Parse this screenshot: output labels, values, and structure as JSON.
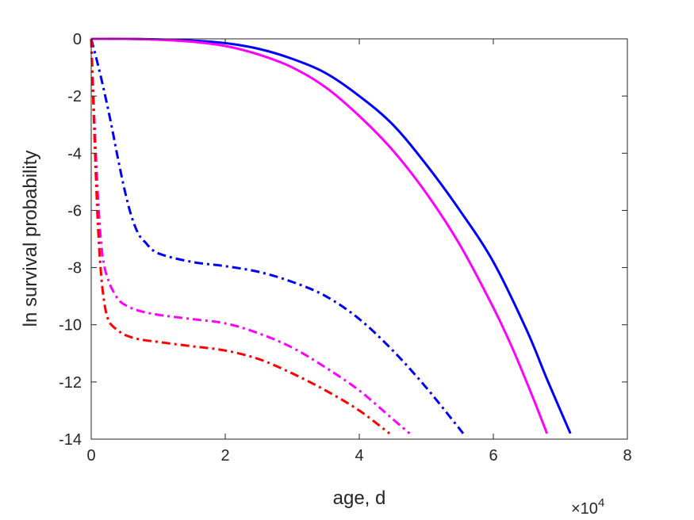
{
  "chart_data": {
    "type": "line",
    "title": "",
    "xlabel": "age, d",
    "ylabel": "ln survival probability",
    "xlim": [
      0,
      80000
    ],
    "ylim": [
      -14,
      0
    ],
    "x_ticks": [
      0,
      20000,
      40000,
      60000,
      80000
    ],
    "x_tick_labels": [
      "0",
      "2",
      "4",
      "6",
      "8"
    ],
    "x_multiplier": {
      "base": "×10",
      "exponent": "4"
    },
    "y_ticks": [
      0,
      -2,
      -4,
      -6,
      -8,
      -10,
      -12,
      -14
    ],
    "y_tick_labels": [
      "0",
      "-2",
      "-4",
      "-6",
      "-8",
      "-10",
      "-12",
      "-14"
    ],
    "grid": false,
    "legend": "none",
    "series": [
      {
        "color": "#0000ff",
        "style": "solid",
        "x": [
          0,
          5000,
          10000,
          15000,
          20000,
          25000,
          30000,
          35000,
          40000,
          45000,
          50000,
          55000,
          60000,
          65000,
          68000,
          71500
        ],
        "y": [
          0,
          0,
          -0.02,
          -0.06,
          -0.15,
          -0.35,
          -0.7,
          -1.2,
          -2.0,
          -3.0,
          -4.4,
          -6.0,
          -7.8,
          -10.2,
          -11.9,
          -13.8
        ]
      },
      {
        "color": "#ff00ff",
        "style": "solid",
        "x": [
          0,
          5000,
          10000,
          15000,
          20000,
          25000,
          30000,
          35000,
          40000,
          45000,
          50000,
          55000,
          60000,
          63000,
          66000,
          68000
        ],
        "y": [
          0,
          0,
          -0.03,
          -0.1,
          -0.25,
          -0.55,
          -1.0,
          -1.7,
          -2.7,
          -3.9,
          -5.4,
          -7.2,
          -9.4,
          -10.9,
          -12.6,
          -13.8
        ]
      },
      {
        "color": "#0000ff",
        "style": "dashdot",
        "x": [
          0,
          1000,
          2000,
          3000,
          4000,
          5000,
          6000,
          7000,
          8000,
          10000,
          15000,
          20000,
          25000,
          30000,
          35000,
          40000,
          45000,
          50000,
          55500
        ],
        "y": [
          0,
          -0.9,
          -1.9,
          -3.0,
          -4.2,
          -5.3,
          -6.2,
          -6.8,
          -7.1,
          -7.5,
          -7.8,
          -7.95,
          -8.15,
          -8.5,
          -9.0,
          -9.8,
          -10.9,
          -12.2,
          -13.8
        ]
      },
      {
        "color": "#ff00ff",
        "style": "dashdot",
        "x": [
          0,
          500,
          1000,
          1500,
          2000,
          2500,
          3000,
          4000,
          5000,
          7000,
          10000,
          15000,
          20000,
          25000,
          30000,
          35000,
          40000,
          45000,
          47500
        ],
        "y": [
          0,
          -3.0,
          -5.5,
          -7.2,
          -8.0,
          -8.4,
          -8.7,
          -9.1,
          -9.3,
          -9.5,
          -9.65,
          -9.8,
          -9.95,
          -10.3,
          -10.8,
          -11.5,
          -12.3,
          -13.3,
          -13.8
        ]
      },
      {
        "color": "#ff0000",
        "style": "dashdot",
        "x": [
          0,
          500,
          1000,
          1500,
          2000,
          2500,
          3000,
          4000,
          5000,
          7000,
          10000,
          15000,
          20000,
          25000,
          30000,
          35000,
          40000,
          44500
        ],
        "y": [
          0,
          -3.5,
          -6.5,
          -8.3,
          -9.3,
          -9.8,
          -10.0,
          -10.2,
          -10.35,
          -10.5,
          -10.6,
          -10.75,
          -10.9,
          -11.2,
          -11.7,
          -12.3,
          -13.0,
          -13.8
        ]
      }
    ]
  }
}
